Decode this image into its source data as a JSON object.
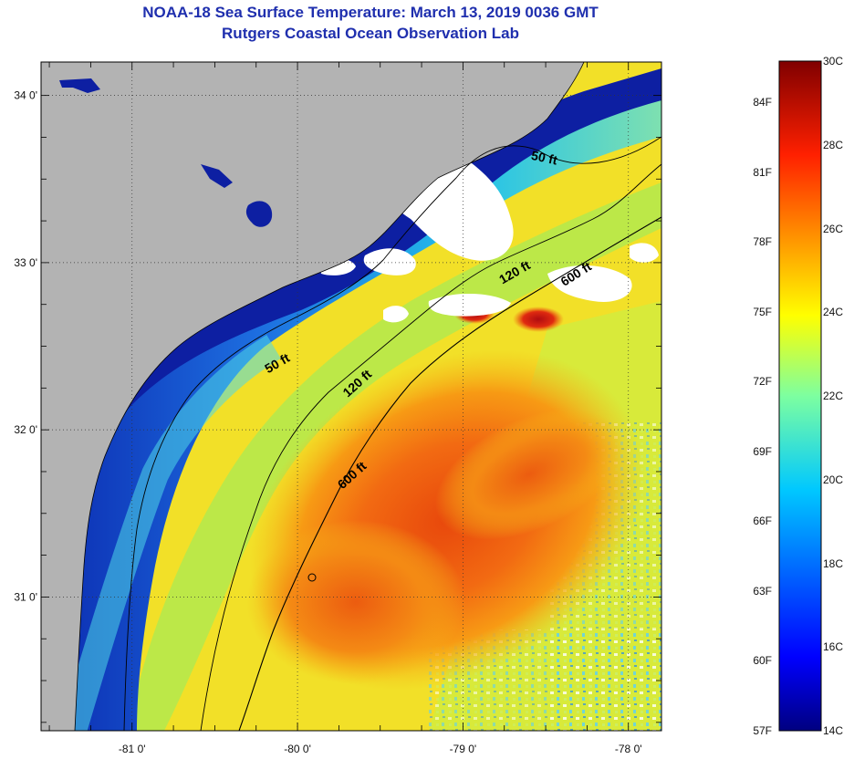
{
  "title": {
    "line1": "NOAA-18 Sea Surface Temperature:  March 13, 2019 0036 GMT",
    "line2": "Rutgers Coastal Ocean Observation Lab"
  },
  "map": {
    "x_ticks": [
      {
        "lon": -81,
        "label": "-81 0'"
      },
      {
        "lon": -80,
        "label": "-80 0'"
      },
      {
        "lon": -79,
        "label": "-79 0'"
      },
      {
        "lon": -78,
        "label": "-78 0'"
      }
    ],
    "y_ticks": [
      {
        "lat": 34,
        "label": "34 0'"
      },
      {
        "lat": 33,
        "label": "33 0'"
      },
      {
        "lat": 32,
        "label": "32 0'"
      },
      {
        "lat": 31,
        "label": "31 0'"
      }
    ],
    "lon_range": [
      -81.55,
      -77.8
    ],
    "lat_range": [
      30.2,
      34.2
    ],
    "contour_labels": [
      "50 ft",
      "50 ft",
      "120 ft",
      "120 ft",
      "600 ft",
      "600 ft"
    ],
    "colors": {
      "land": "#b3b3b3",
      "cloud": "#ffffff",
      "deep_blue": "#0a1a9a",
      "warm_core": "#ee5a10"
    }
  },
  "colorbar": {
    "fahrenheit": [
      "84F",
      "81F",
      "78F",
      "75F",
      "72F",
      "69F",
      "66F",
      "63F",
      "60F",
      "57F"
    ],
    "celsius": [
      "30C",
      "28C",
      "26C",
      "24C",
      "22C",
      "20C",
      "18C",
      "16C",
      "14C"
    ]
  }
}
